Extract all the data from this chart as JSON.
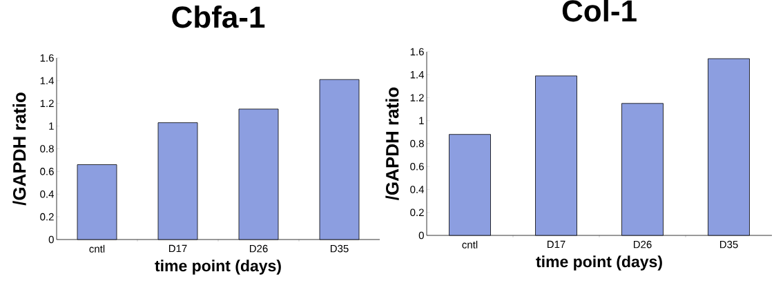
{
  "chart_data": [
    {
      "type": "bar",
      "title": "Cbfa-1",
      "xlabel": "time point (days)",
      "ylabel": "/GAPDH ratio",
      "categories": [
        "cntl",
        "D17",
        "D26",
        "D35"
      ],
      "values": [
        0.66,
        1.03,
        1.15,
        1.41
      ],
      "color": "#8c9ee0",
      "ylim": [
        0,
        1.6
      ],
      "yticks": [
        0,
        0.2,
        0.4,
        0.6,
        0.8,
        1,
        1.2,
        1.4,
        1.6
      ]
    },
    {
      "type": "bar",
      "title": "Col-1",
      "xlabel": "time point (days)",
      "ylabel": "/GAPDH ratio",
      "categories": [
        "cntl",
        "D17",
        "D26",
        "D35"
      ],
      "values": [
        0.88,
        1.39,
        1.15,
        1.54
      ],
      "color": "#8c9ee0",
      "ylim": [
        0,
        1.6
      ],
      "yticks": [
        0,
        0.2,
        0.4,
        0.6,
        0.8,
        1,
        1.2,
        1.4,
        1.6
      ]
    }
  ]
}
